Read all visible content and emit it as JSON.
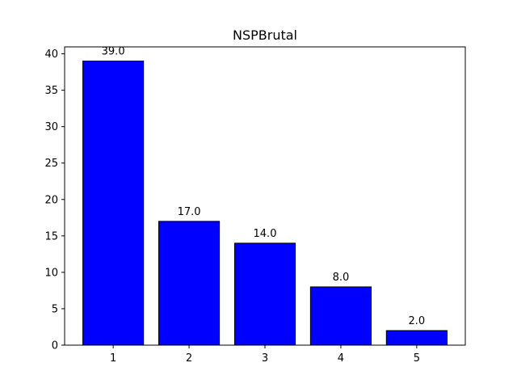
{
  "chart_data": {
    "type": "bar",
    "title": "NSPBrutal",
    "xlabel": "",
    "ylabel": "",
    "categories": [
      "1",
      "2",
      "3",
      "4",
      "5"
    ],
    "values": [
      39.0,
      17.0,
      14.0,
      8.0,
      2.0
    ],
    "data_labels": [
      "39.0",
      "17.0",
      "14.0",
      "8.0",
      "2.0"
    ],
    "yticks": [
      0,
      5,
      10,
      15,
      20,
      25,
      30,
      35,
      40
    ],
    "ylim": [
      0,
      40.95
    ],
    "grid": false,
    "legend": "none",
    "bar_color": "#0000ff",
    "bar_edge_color": "#000000"
  }
}
